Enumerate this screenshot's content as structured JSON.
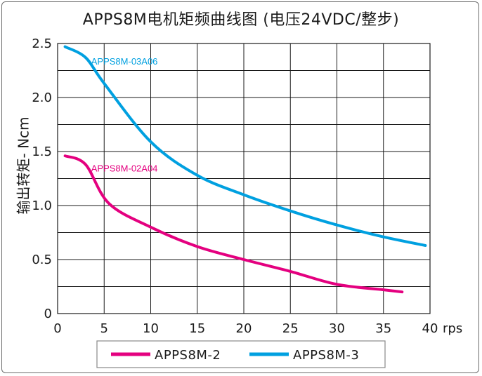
{
  "chart_data": {
    "type": "line",
    "title": "APPS8M电机矩频曲线图 (电压24VDC/整步)",
    "xlabel": "rps",
    "ylabel": "输出转矩- Ncm",
    "xlim": [
      0,
      40
    ],
    "ylim": [
      0,
      2.5
    ],
    "xticks": [
      0,
      5,
      10,
      15,
      20,
      25,
      30,
      35,
      40
    ],
    "yticks": [
      "0",
      "0.5",
      "1.0",
      "1.5",
      "2.0",
      "2.5"
    ],
    "grid": true,
    "legend_position": "bottom",
    "series": [
      {
        "name": "APPS8M-2",
        "annotation": "APPS8M-02A04",
        "color": "#e4007f",
        "x": [
          0.8,
          3,
          5.5,
          10,
          15,
          20,
          25,
          30,
          35,
          37
        ],
        "y": [
          1.46,
          1.38,
          1.02,
          0.8,
          0.62,
          0.5,
          0.39,
          0.27,
          0.22,
          0.2
        ]
      },
      {
        "name": "APPS8M-3",
        "annotation": "APPS8M-03A06",
        "color": "#00a0e0",
        "x": [
          0.8,
          3,
          5,
          10,
          15,
          20,
          25,
          30,
          35,
          39.5
        ],
        "y": [
          2.47,
          2.37,
          2.13,
          1.59,
          1.28,
          1.1,
          0.95,
          0.82,
          0.71,
          0.63
        ]
      }
    ]
  }
}
